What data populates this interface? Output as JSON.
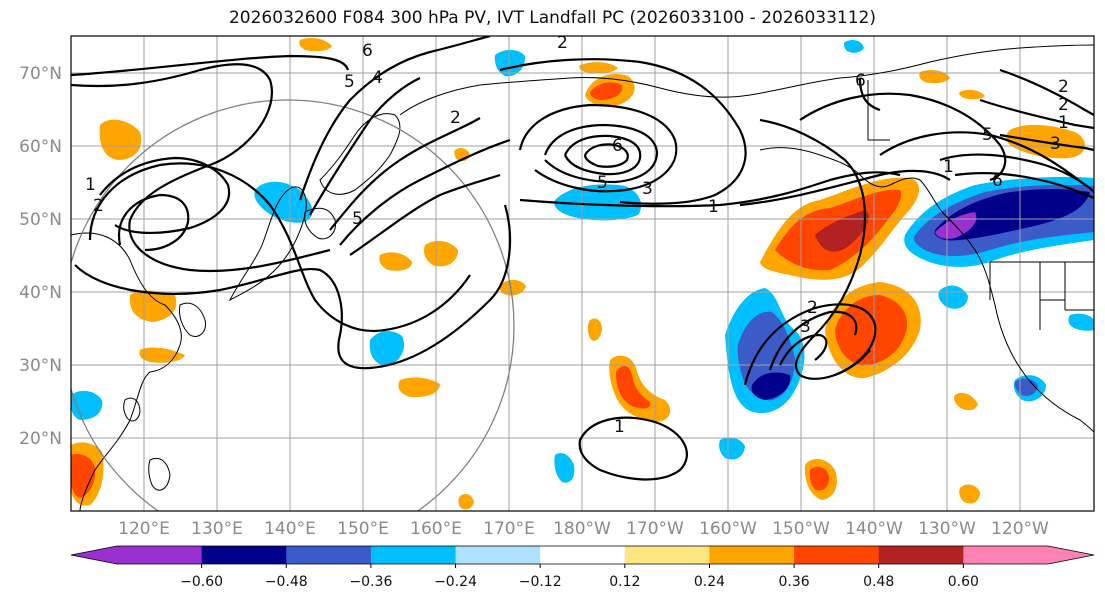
{
  "title": "2026032600 F084 300 hPa PV, IVT Landfall PC (2026033100 - 2026033112)",
  "lat_labels": [
    "70°N",
    "60°N",
    "50°N",
    "40°N",
    "30°N",
    "20°N"
  ],
  "lon_labels": [
    "120°E",
    "130°E",
    "140°E",
    "150°E",
    "160°E",
    "170°E",
    "180°W",
    "170°W",
    "160°W",
    "150°W",
    "140°W",
    "130°W",
    "120°W"
  ],
  "colorbar": {
    "colors": [
      "#9b30d0",
      "#00008b",
      "#3a5bc8",
      "#00bfff",
      "#b0e0ff",
      "#ffffff",
      "#ffe680",
      "#ffa500",
      "#ff4500",
      "#b22222",
      "#ff82b4"
    ],
    "tick_labels": [
      "−0.60",
      "−0.48",
      "−0.36",
      "−0.24",
      "−0.12",
      "0.12",
      "0.24",
      "0.36",
      "0.48",
      "0.60"
    ]
  },
  "contour_labels": [
    "6",
    "5",
    "4",
    "2",
    "2",
    "1",
    "2",
    "5",
    "6",
    "5",
    "3",
    "1",
    "2",
    "3",
    "1",
    "6",
    "5",
    "3",
    "2",
    "1",
    "6",
    "2",
    "1"
  ]
}
